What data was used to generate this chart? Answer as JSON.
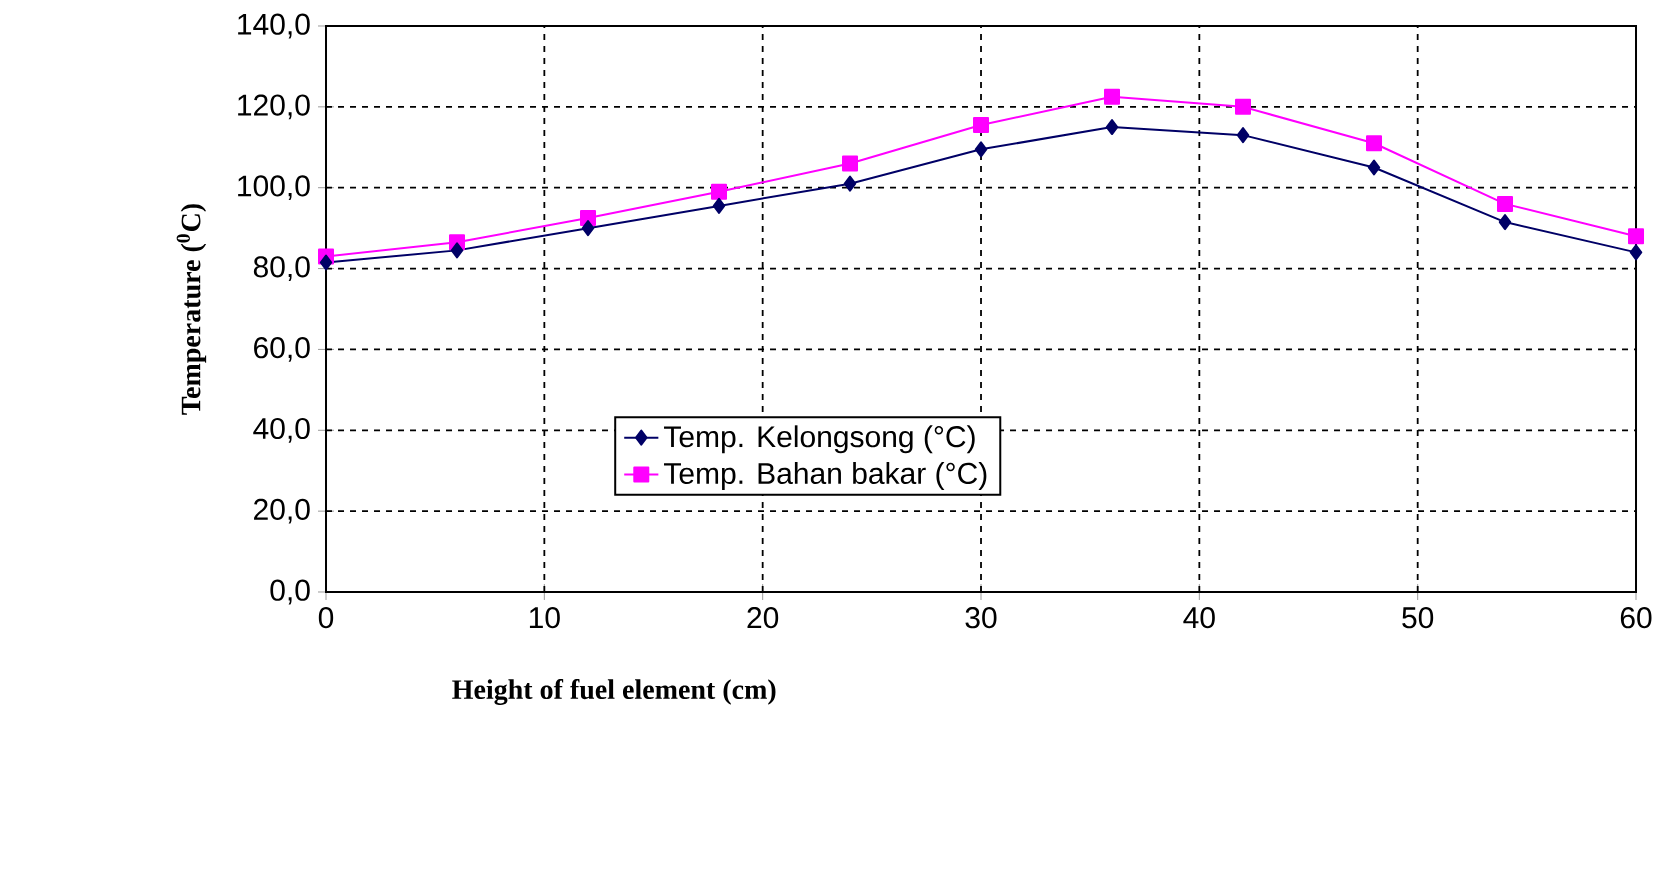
{
  "chart_data": {
    "type": "line",
    "xlabel": "Height of fuel element (cm)",
    "ylabel": "Temperature ($^{0}$C)",
    "x": [
      0,
      6,
      12,
      18,
      24,
      30,
      36,
      42,
      48,
      54,
      60
    ],
    "series": [
      {
        "name": "Temp. Kelongsong (°C)",
        "color": "#000066",
        "marker": "diamond",
        "values": [
          81.5,
          84.5,
          90,
          95.5,
          101,
          109.5,
          115,
          113,
          105,
          91.5,
          84
        ]
      },
      {
        "name": "Temp. Bahan bakar (°C)",
        "color": "#ff00ff",
        "marker": "square",
        "values": [
          83,
          86.5,
          92.5,
          99,
          106,
          115.5,
          122.5,
          120,
          111,
          96,
          88
        ]
      }
    ],
    "xlim": [
      0,
      60
    ],
    "xticks": [
      0,
      10,
      20,
      30,
      40,
      50,
      60
    ],
    "ylim": [
      0,
      140
    ],
    "yticks": [
      {
        "value": 0,
        "label": "0,0"
      },
      {
        "value": 20,
        "label": "20,0"
      },
      {
        "value": 40,
        "label": "40,0"
      },
      {
        "value": 60,
        "label": "60,0"
      },
      {
        "value": 80,
        "label": "80,0"
      },
      {
        "value": 100,
        "label": "100,0"
      },
      {
        "value": 120,
        "label": "120,0"
      },
      {
        "value": 140,
        "label": "140,0"
      }
    ],
    "grid": true,
    "legend": "center",
    "line_style": "solid"
  }
}
